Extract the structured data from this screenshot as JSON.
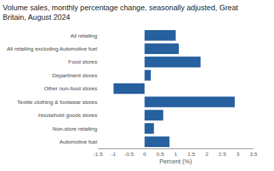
{
  "chart_data": {
    "type": "bar",
    "orientation": "horizontal",
    "title": "Volume sales, monthly percentage change, seasonally adjusted, Great Britain, August 2024",
    "x_label": "Percent (%)",
    "categories": [
      "All retailing",
      "All retailing excluding Automotive fuel",
      "Food stores",
      "Department stores",
      "Other non-food stores",
      "Textile clothing & footwear stores",
      "Household goods stores",
      "Non-store retailing",
      "Automotive fuel"
    ],
    "values": [
      1.0,
      1.1,
      1.8,
      0.2,
      -1.0,
      2.9,
      0.6,
      0.3,
      0.8
    ],
    "color": "#27609e",
    "xlim": [
      -1.5,
      3.5
    ],
    "xticks": [
      -1.5,
      -1,
      -0.5,
      0,
      0.5,
      1,
      1.5,
      2,
      2.5,
      3,
      3.5
    ],
    "grid": false
  }
}
